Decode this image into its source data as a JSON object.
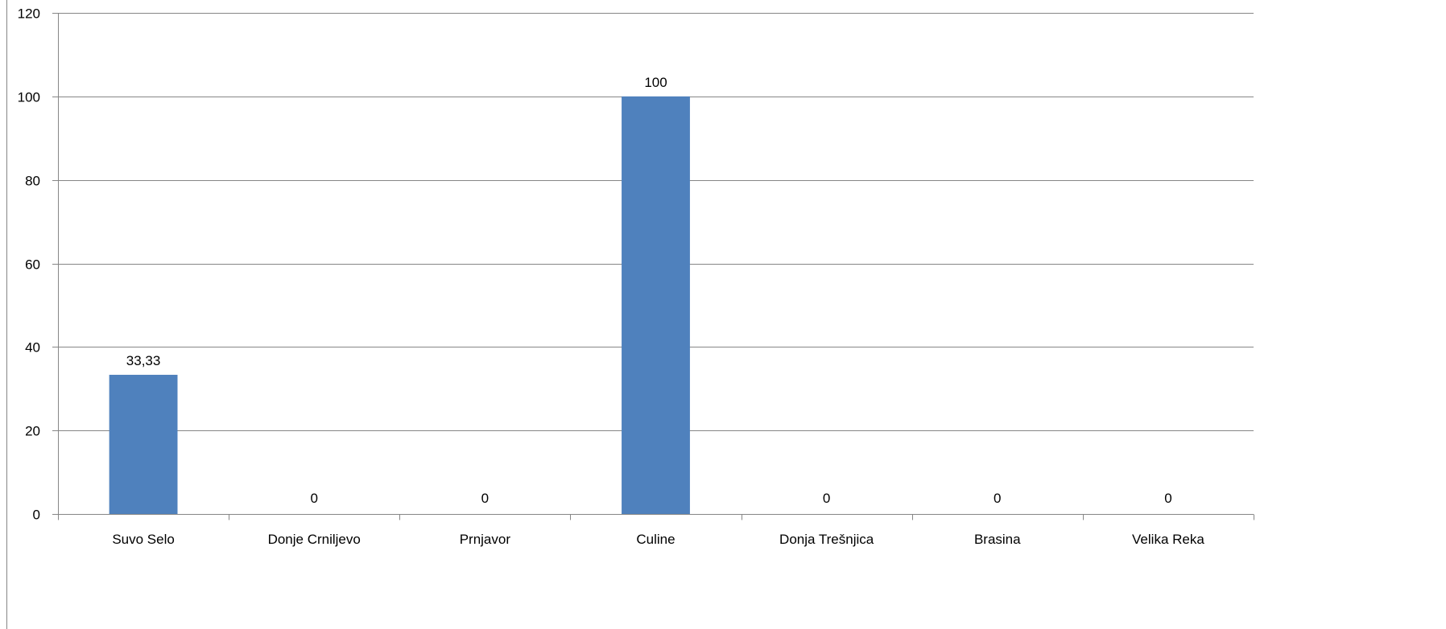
{
  "chart_data": {
    "type": "bar",
    "title": "",
    "xlabel": "",
    "ylabel": "",
    "categories": [
      "Suvo Selo",
      "Donje Crniljevo",
      "Prnjavor",
      "Culine",
      "Donja Trešnjica",
      "Brasina",
      "Velika Reka"
    ],
    "values": [
      33.33,
      0,
      0,
      100,
      0,
      0,
      0
    ],
    "data_labels": [
      "33,33",
      "0",
      "0",
      "100",
      "0",
      "0",
      "0"
    ],
    "ylim": [
      0,
      120
    ],
    "yticks": [
      0,
      20,
      40,
      60,
      80,
      100,
      120
    ],
    "grid": true,
    "legend": "none",
    "bar_color": "#4f81bd",
    "grid_color": "#868686",
    "axis_color": "#868686"
  }
}
